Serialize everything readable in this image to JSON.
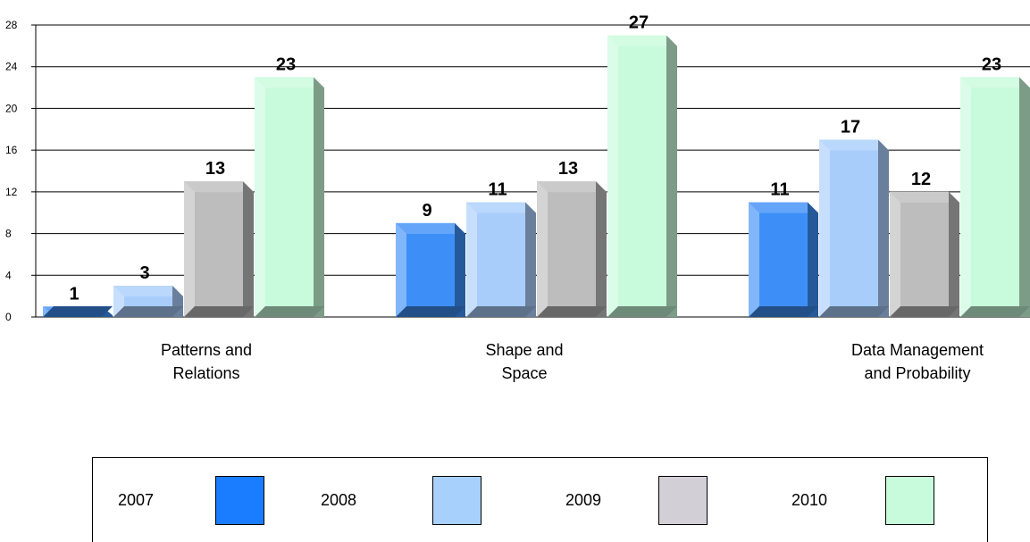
{
  "chart_data": {
    "type": "bar",
    "categories": [
      [
        "Patterns and",
        "Relations"
      ],
      [
        "Shape and",
        "Space"
      ],
      [
        "Data Management",
        "and Probability"
      ]
    ],
    "series": [
      {
        "name": "2007",
        "values": [
          1,
          9,
          11
        ],
        "color": "#3d8ff7"
      },
      {
        "name": "2008",
        "values": [
          3,
          11,
          17
        ],
        "color": "#a9cdfb"
      },
      {
        "name": "2009",
        "values": [
          13,
          13,
          12
        ],
        "color": "#bdbdbd"
      },
      {
        "name": "2010",
        "values": [
          23,
          27,
          23
        ],
        "color": "#c8fbdc"
      }
    ],
    "y_ticks": [
      "0",
      "4",
      "8",
      "12",
      "16",
      "20",
      "24",
      "28"
    ],
    "ylim": [
      0,
      28
    ],
    "grid": true,
    "legend_position": "bottom"
  },
  "legend": {
    "items": [
      {
        "label": "2007",
        "color": "#1a7cff"
      },
      {
        "label": "2008",
        "color": "#a8d0fd"
      },
      {
        "label": "2009",
        "color": "#d2d0d6"
      },
      {
        "label": "2010",
        "color": "#c8fbdc"
      }
    ]
  }
}
